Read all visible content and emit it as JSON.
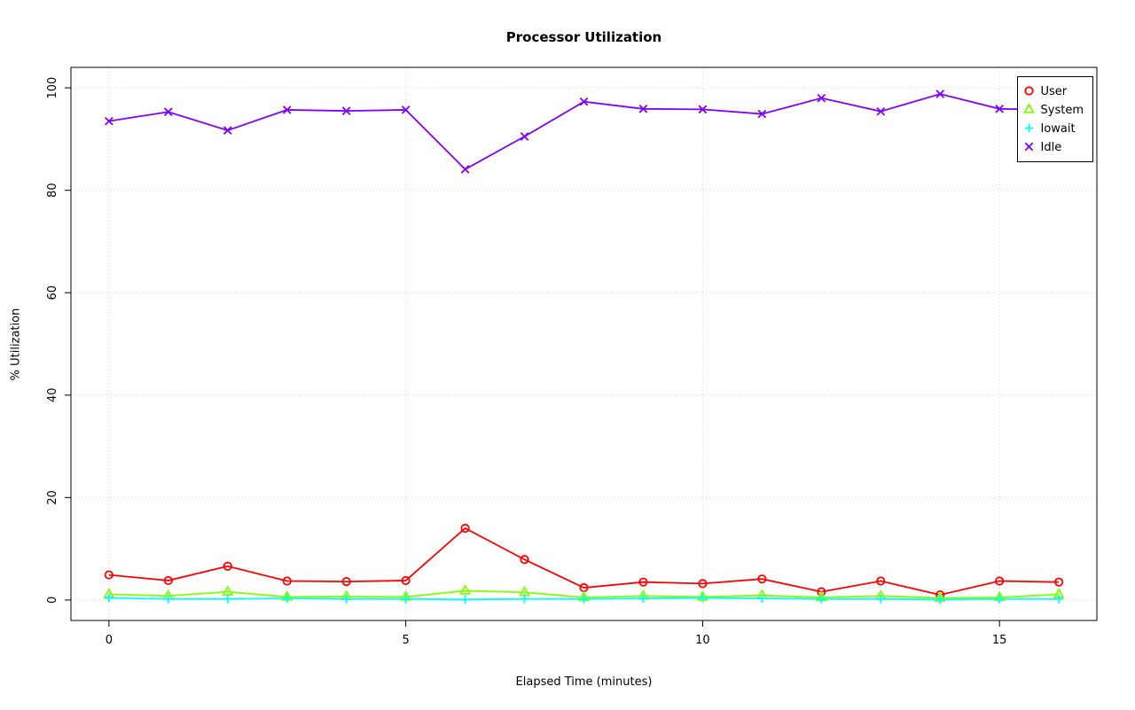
{
  "chart_data": {
    "type": "line",
    "title": "Processor Utilization",
    "xlabel": "Elapsed Time (minutes)",
    "ylabel": "% Utilization",
    "xlim": [
      0,
      16
    ],
    "ylim": [
      0,
      100
    ],
    "x_ticks": [
      0,
      5,
      10,
      15
    ],
    "y_ticks": [
      0,
      20,
      40,
      60,
      80,
      100
    ],
    "grid": true,
    "grid_style": "dotted",
    "legend_position": "top-right",
    "x": [
      0,
      1,
      2,
      3,
      4,
      5,
      6,
      7,
      8,
      9,
      10,
      11,
      12,
      13,
      14,
      15,
      16
    ],
    "series": [
      {
        "name": "User",
        "color": "#FF0000",
        "marker": "circle",
        "values": [
          4.9,
          3.8,
          6.6,
          3.7,
          3.6,
          3.8,
          14.0,
          7.9,
          2.4,
          3.5,
          3.2,
          4.1,
          1.6,
          3.7,
          1.0,
          3.7,
          3.5
        ]
      },
      {
        "name": "System",
        "color": "#80FF00",
        "marker": "triangle",
        "values": [
          1.1,
          0.8,
          1.6,
          0.6,
          0.7,
          0.6,
          1.8,
          1.5,
          0.5,
          0.8,
          0.6,
          0.9,
          0.5,
          0.8,
          0.4,
          0.5,
          1.1
        ]
      },
      {
        "name": "Iowait",
        "color": "#00FFFF",
        "marker": "plus",
        "values": [
          0.4,
          0.2,
          0.2,
          0.3,
          0.2,
          0.2,
          0.1,
          0.2,
          0.2,
          0.3,
          0.4,
          0.3,
          0.2,
          0.2,
          0.1,
          0.2,
          0.2
        ]
      },
      {
        "name": "Idle",
        "color": "#8000FF",
        "marker": "x",
        "values": [
          93.5,
          95.3,
          91.7,
          95.7,
          95.5,
          95.7,
          84.1,
          90.5,
          97.3,
          95.9,
          95.8,
          94.9,
          98.0,
          95.4,
          98.8,
          95.9,
          95.7
        ]
      }
    ]
  }
}
